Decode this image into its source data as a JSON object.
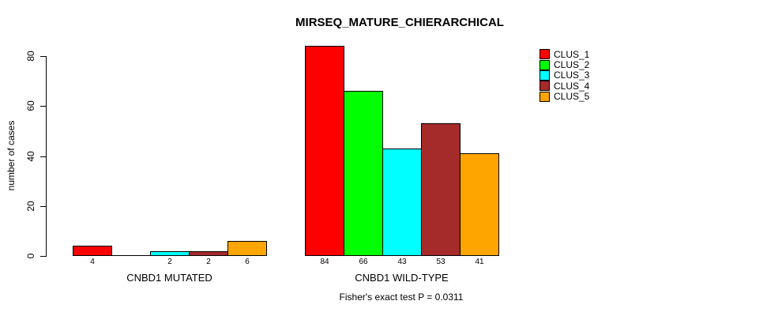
{
  "chart_data": {
    "type": "bar",
    "title": "MIRSEQ_MATURE_CHIERARCHICAL",
    "ylabel": "number of cases",
    "xlabel": "",
    "ylim": [
      0,
      80
    ],
    "yticks": [
      0,
      20,
      40,
      60,
      80
    ],
    "grid": false,
    "background": "#FFFFFF",
    "legend_position": "topright",
    "categories": [
      "CNBD1 MUTATED",
      "CNBD1 WILD-TYPE"
    ],
    "series": [
      {
        "name": "CLUS_1",
        "color": "#FF0000",
        "values": [
          4,
          84
        ]
      },
      {
        "name": "CLUS_2",
        "color": "#00FF00",
        "values": [
          0,
          66
        ]
      },
      {
        "name": "CLUS_3",
        "color": "#00FFFF",
        "values": [
          2,
          43
        ]
      },
      {
        "name": "CLUS_4",
        "color": "#A52A2A",
        "values": [
          2,
          53
        ]
      },
      {
        "name": "CLUS_5",
        "color": "#FFA500",
        "values": [
          6,
          41
        ]
      }
    ],
    "bar_value_labels": [
      [
        "4",
        "",
        "2",
        "2",
        "6"
      ],
      [
        "84",
        "66",
        "43",
        "53",
        "41"
      ]
    ],
    "annotation": "Fisher's exact test P = 0.0311"
  }
}
